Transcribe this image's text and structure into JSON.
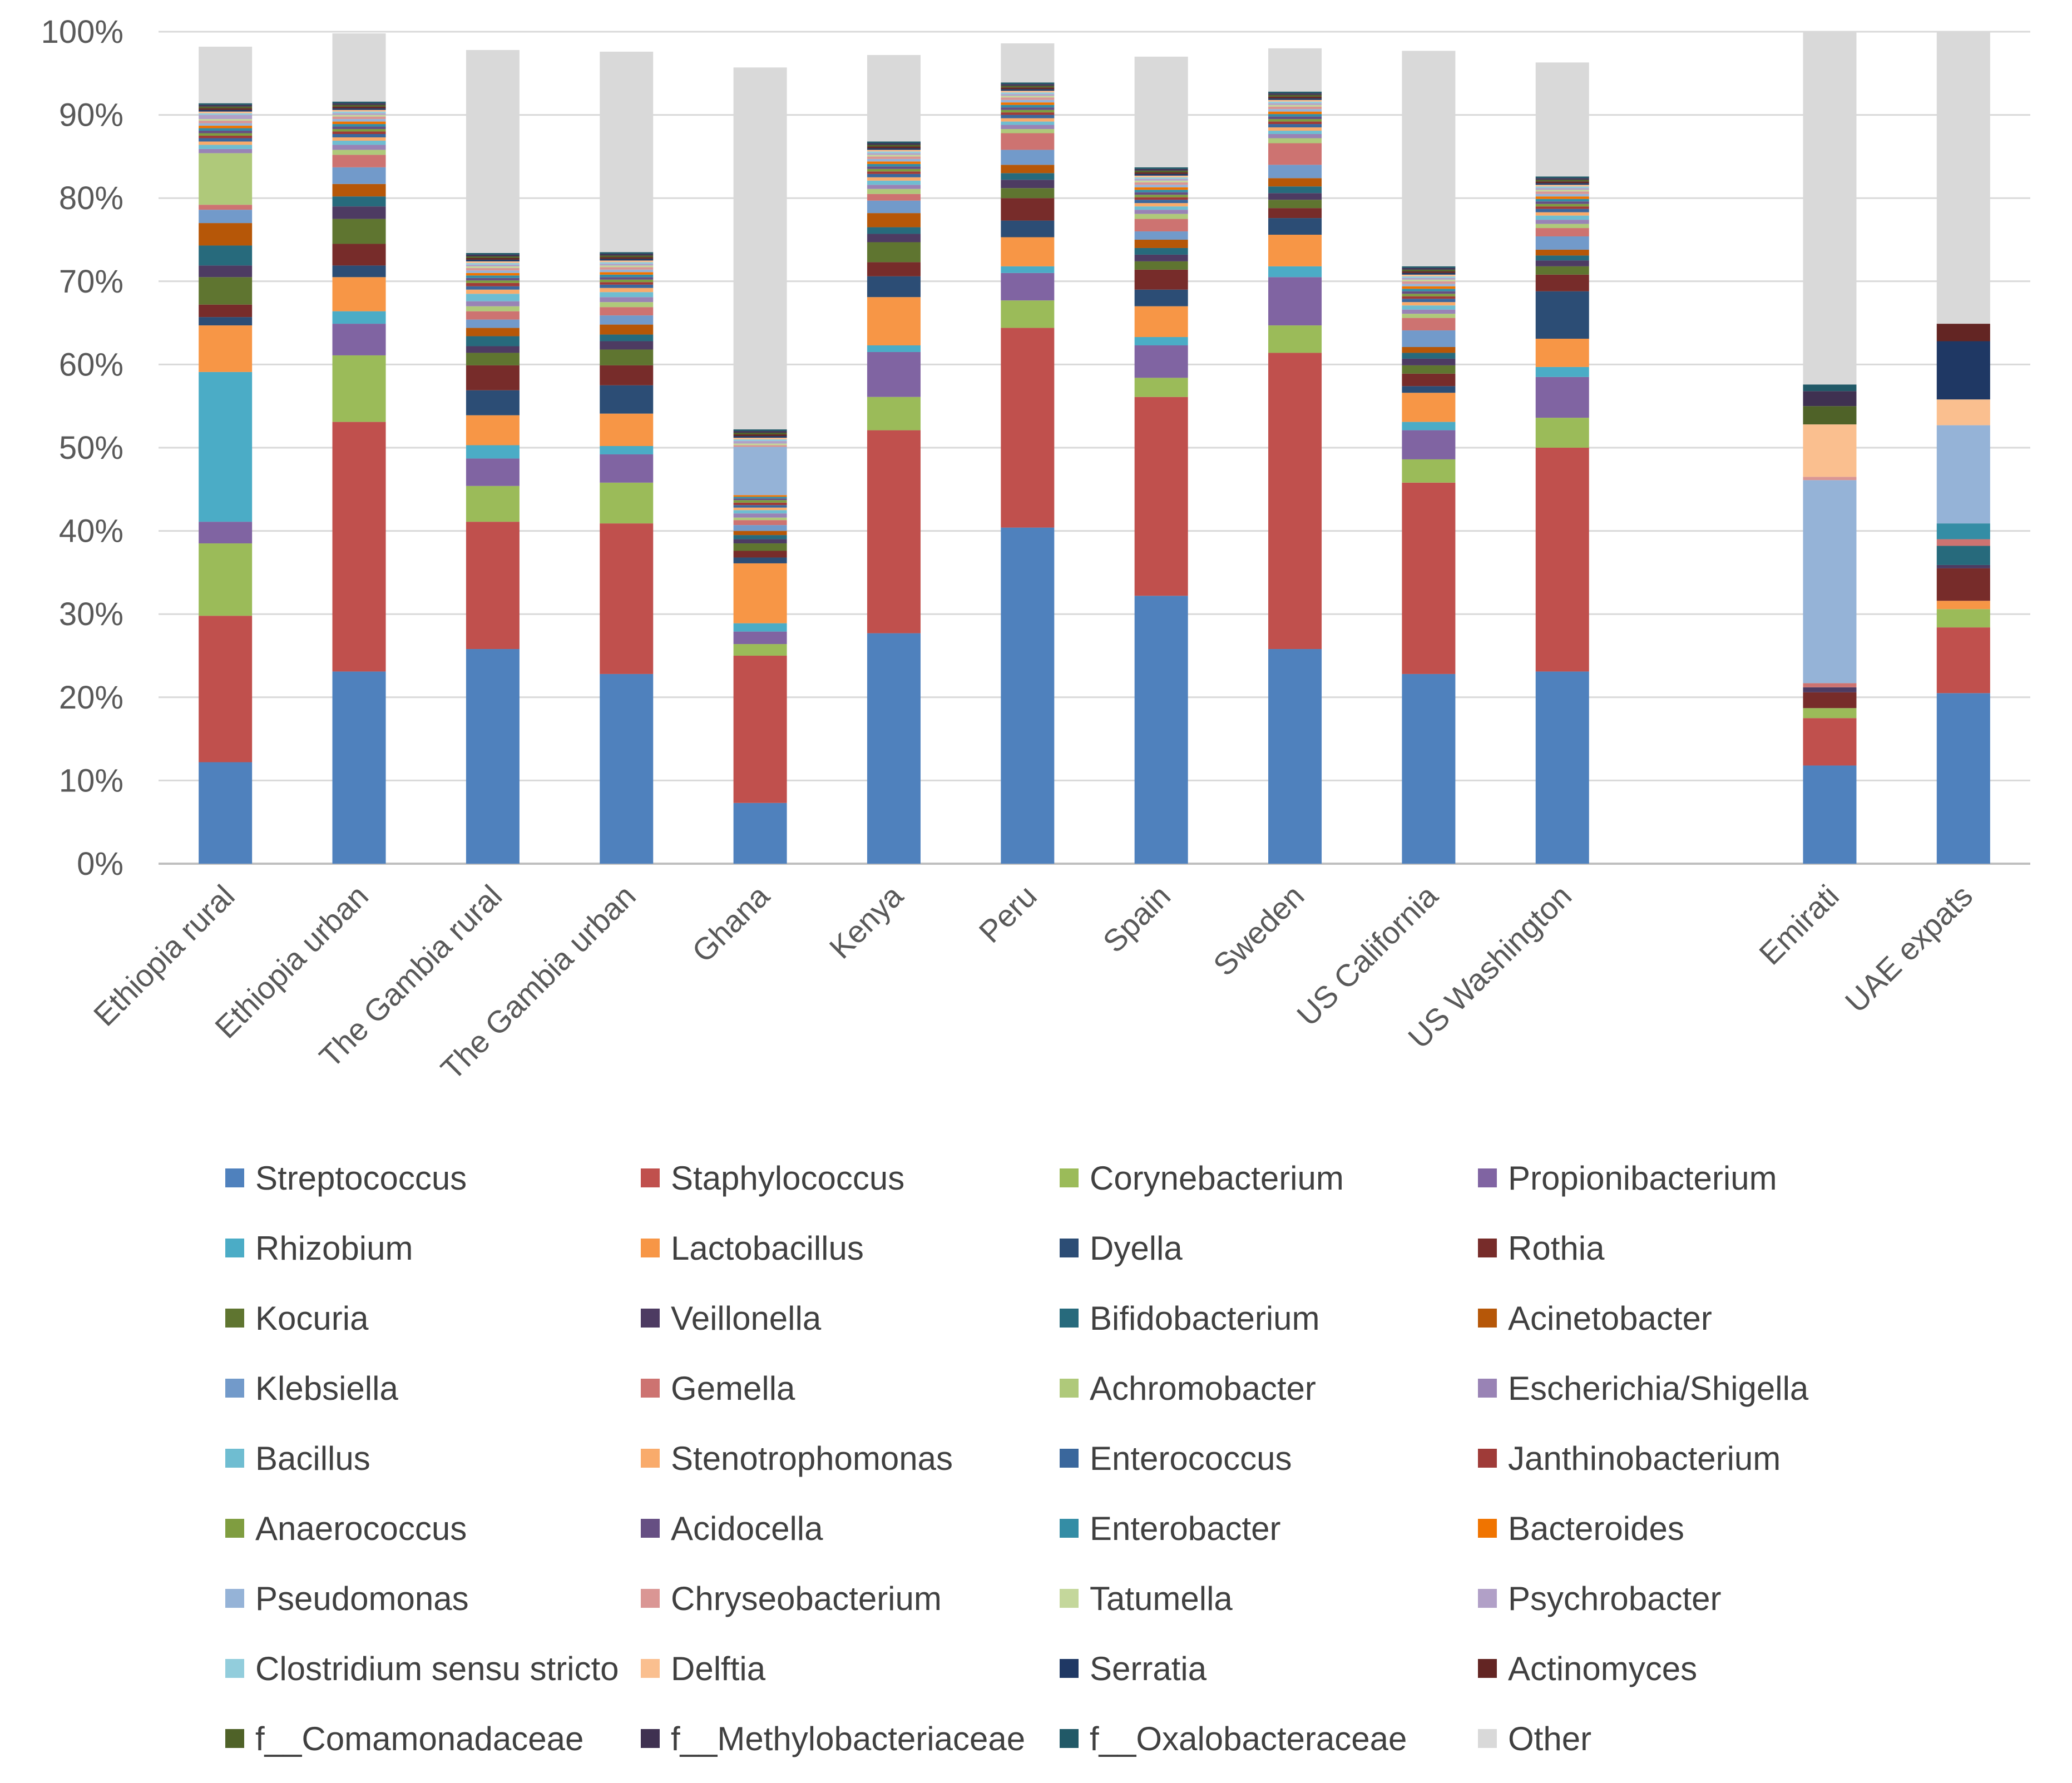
{
  "chart_data": {
    "type": "stacked-bar",
    "title": "",
    "xlabel": "",
    "ylabel": "",
    "ylim": [
      0,
      100
    ],
    "yticks": [
      "0%",
      "10%",
      "20%",
      "30%",
      "40%",
      "50%",
      "60%",
      "70%",
      "80%",
      "90%",
      "100%"
    ],
    "grid": true,
    "legend_position": "bottom",
    "categories": [
      "Ethiopia rural",
      "Ethiopia urban",
      "The Gambia rural",
      "The Gambia urban",
      "Ghana",
      "Kenya",
      "Peru",
      "Spain",
      "Sweden",
      "US California",
      "US Washington",
      "",
      "Emirati",
      "UAE expats"
    ],
    "series": [
      {
        "name": "Streptococcus",
        "color": "#4F81BD",
        "values": [
          12.2,
          23.1,
          25.8,
          22.8,
          7.3,
          27.7,
          40.4,
          32.2,
          25.8,
          22.8,
          23.1,
          0,
          11.8,
          20.5
        ]
      },
      {
        "name": "Staphylococcus",
        "color": "#C0504D",
        "values": [
          17.6,
          30.0,
          15.3,
          18.1,
          17.7,
          24.4,
          24.0,
          23.9,
          35.6,
          23.0,
          26.9,
          0,
          5.7,
          7.9
        ]
      },
      {
        "name": "Corynebacterium",
        "color": "#9BBB59",
        "values": [
          8.7,
          8.0,
          4.3,
          4.9,
          1.4,
          4.0,
          3.3,
          2.3,
          3.3,
          2.8,
          3.6,
          0,
          1.2,
          2.2
        ]
      },
      {
        "name": "Propionibacterium",
        "color": "#8064A2",
        "values": [
          2.6,
          3.8,
          3.3,
          3.4,
          1.5,
          5.4,
          3.3,
          3.9,
          5.8,
          3.5,
          4.9,
          0,
          0,
          0
        ]
      },
      {
        "name": "Rhizobium",
        "color": "#4BACC6",
        "values": [
          18.0,
          1.5,
          1.6,
          1.0,
          1.0,
          0.8,
          0.8,
          1.0,
          1.3,
          1.0,
          1.2,
          0,
          0,
          0
        ]
      },
      {
        "name": "Lactobacillus",
        "color": "#F79646",
        "values": [
          5.6,
          4.1,
          3.6,
          3.9,
          7.2,
          5.8,
          3.5,
          3.7,
          3.8,
          3.5,
          3.4,
          0,
          0,
          1.0
        ]
      },
      {
        "name": "Dyella",
        "color": "#2C4D75",
        "values": [
          1.0,
          1.4,
          3.0,
          3.4,
          0.7,
          2.5,
          2.0,
          2.0,
          2.0,
          0.8,
          5.7,
          0,
          0,
          0
        ]
      },
      {
        "name": "Rothia",
        "color": "#772C2A",
        "values": [
          1.5,
          2.6,
          3.0,
          2.4,
          0.8,
          1.7,
          2.7,
          2.4,
          1.2,
          1.5,
          2.0,
          0,
          1.9,
          3.9
        ]
      },
      {
        "name": "Kocuria",
        "color": "#5F7530",
        "values": [
          3.3,
          3.0,
          1.5,
          1.9,
          0.9,
          2.4,
          1.2,
          1.0,
          1.0,
          1.0,
          1.0,
          0,
          0,
          0
        ]
      },
      {
        "name": "Veillonella",
        "color": "#4D3B62",
        "values": [
          1.4,
          1.5,
          0.8,
          1.0,
          0.5,
          1.0,
          1.0,
          0.8,
          0.8,
          0.8,
          0.7,
          0,
          0.6,
          0.4
        ]
      },
      {
        "name": "Bifidobacterium",
        "color": "#276A7C",
        "values": [
          2.4,
          1.2,
          1.2,
          0.8,
          0.5,
          0.8,
          0.8,
          0.8,
          0.8,
          0.7,
          0.6,
          0,
          0,
          2.3
        ]
      },
      {
        "name": "Acinetobacter",
        "color": "#B65708",
        "values": [
          2.7,
          1.5,
          1.0,
          1.2,
          0.5,
          1.7,
          1.0,
          1.0,
          1.0,
          0.7,
          0.7,
          0,
          0,
          0
        ]
      },
      {
        "name": "Klebsiella",
        "color": "#729ACA",
        "values": [
          1.6,
          2.0,
          1.0,
          1.1,
          0.7,
          1.5,
          1.8,
          1.0,
          1.6,
          2.0,
          1.6,
          0,
          0,
          0
        ]
      },
      {
        "name": "Gemella",
        "color": "#CD7371",
        "values": [
          0.6,
          1.5,
          1.0,
          1.0,
          0.6,
          0.8,
          2.0,
          1.5,
          2.6,
          1.5,
          1.0,
          0,
          0.5,
          0.8
        ]
      },
      {
        "name": "Achromobacter",
        "color": "#AFC97A",
        "values": [
          6.2,
          0.6,
          0.6,
          0.6,
          0.3,
          0.6,
          0.5,
          0.6,
          0.6,
          0.5,
          0.5,
          0,
          0,
          0
        ]
      },
      {
        "name": "Escherichia/Shigella",
        "color": "#9983B5",
        "values": [
          0.5,
          0.6,
          0.6,
          0.6,
          0.5,
          0.5,
          0.5,
          0.5,
          0.5,
          0.5,
          0.5,
          0,
          0,
          0
        ]
      },
      {
        "name": "Bacillus",
        "color": "#6FBDD1",
        "values": [
          0.5,
          0.5,
          0.9,
          0.6,
          0.4,
          0.5,
          0.4,
          0.4,
          0.4,
          0.5,
          0.5,
          0,
          0,
          0
        ]
      },
      {
        "name": "Stenotrophomonas",
        "color": "#F9AB6B",
        "values": [
          0.4,
          0.4,
          0.5,
          0.5,
          0.3,
          0.4,
          0.4,
          0.4,
          0.4,
          0.4,
          0.4,
          0,
          0,
          0
        ]
      },
      {
        "name": "Enterococcus",
        "color": "#3A679C",
        "values": [
          0.4,
          0.4,
          0.4,
          0.4,
          0.3,
          0.4,
          0.4,
          0.4,
          0.4,
          0.4,
          0.4,
          0,
          0,
          0
        ]
      },
      {
        "name": "Janthinobacterium",
        "color": "#9F3B38",
        "values": [
          0.3,
          0.3,
          0.4,
          0.3,
          0.3,
          0.3,
          0.3,
          0.3,
          0.3,
          0.3,
          0.3,
          0,
          0,
          0
        ]
      },
      {
        "name": "Anaerococcus",
        "color": "#7F9D40",
        "values": [
          0.3,
          0.3,
          0.3,
          0.3,
          0.3,
          0.3,
          0.3,
          0.3,
          0.3,
          0.3,
          0.3,
          0,
          0,
          0
        ]
      },
      {
        "name": "Acidocella",
        "color": "#664F83",
        "values": [
          0.3,
          0.3,
          0.3,
          0.3,
          0.2,
          0.3,
          0.3,
          0.3,
          0.3,
          0.3,
          0.3,
          0,
          0,
          0
        ]
      },
      {
        "name": "Enterobacter",
        "color": "#348DA5",
        "values": [
          0.3,
          0.3,
          0.3,
          0.3,
          0.2,
          0.3,
          0.3,
          0.3,
          0.3,
          0.3,
          0.3,
          0,
          0,
          1.9
        ]
      },
      {
        "name": "Bacteroides",
        "color": "#F07400",
        "values": [
          0.3,
          0.3,
          0.3,
          0.3,
          0.2,
          0.3,
          0.3,
          0.3,
          0.3,
          0.3,
          0.3,
          0,
          0,
          0
        ]
      },
      {
        "name": "Pseudomonas",
        "color": "#95B3D7",
        "values": [
          0.3,
          0.3,
          0.3,
          0.3,
          5.8,
          0.3,
          0.3,
          0.3,
          0.3,
          0.3,
          0.3,
          0,
          24.4,
          11.8
        ]
      },
      {
        "name": "Chryseobacterium",
        "color": "#DA9694",
        "values": [
          0.3,
          0.3,
          0.3,
          0.3,
          0.2,
          0.3,
          0.3,
          0.3,
          0.3,
          0.3,
          0.3,
          0,
          0.4,
          0
        ]
      },
      {
        "name": "Tatumella",
        "color": "#C4D79B",
        "values": [
          0.2,
          0.2,
          0.2,
          0.2,
          0.2,
          0.2,
          0.2,
          0.2,
          0.2,
          0.2,
          0.2,
          0,
          0,
          0
        ]
      },
      {
        "name": "Psychrobacter",
        "color": "#B1A0C7",
        "values": [
          0.5,
          0.2,
          0.2,
          0.2,
          0.3,
          0.2,
          0.2,
          0.2,
          0.2,
          0.2,
          0.2,
          0,
          0,
          0
        ]
      },
      {
        "name": "Clostridium sensu stricto",
        "color": "#92CDDC",
        "values": [
          0.2,
          0.2,
          0.2,
          0.2,
          0.2,
          0.2,
          0.2,
          0.2,
          0.2,
          0.2,
          0.2,
          0,
          0,
          0
        ]
      },
      {
        "name": "Delftia",
        "color": "#FABF8F",
        "values": [
          0.2,
          0.2,
          0.2,
          0.2,
          0.2,
          0.2,
          0.2,
          0.2,
          0.2,
          0.2,
          0.2,
          0,
          6.3,
          3.1
        ]
      },
      {
        "name": "Serratia",
        "color": "#1F3864",
        "values": [
          0.2,
          0.2,
          0.2,
          0.2,
          0.2,
          0.2,
          0.2,
          0.2,
          0.2,
          0.2,
          0.2,
          0,
          0,
          7.0
        ]
      },
      {
        "name": "Actinomyces",
        "color": "#632523",
        "values": [
          0.2,
          0.2,
          0.2,
          0.2,
          0.2,
          0.2,
          0.2,
          0.2,
          0.2,
          0.2,
          0.2,
          0,
          0,
          2.1
        ]
      },
      {
        "name": "f__Comamonadaceae",
        "color": "#4F6228",
        "values": [
          0.2,
          0.2,
          0.2,
          0.2,
          0.2,
          0.2,
          0.2,
          0.2,
          0.2,
          0.2,
          0.2,
          0,
          2.2,
          0
        ]
      },
      {
        "name": "f__Methylobacteriaceae",
        "color": "#3F3151",
        "values": [
          0.2,
          0.2,
          0.2,
          0.2,
          0.2,
          0.2,
          0.2,
          0.2,
          0.2,
          0.2,
          0.2,
          0,
          1.8,
          0
        ]
      },
      {
        "name": "f__Oxalobacteraceae",
        "color": "#215967",
        "values": [
          0.2,
          0.2,
          0.2,
          0.2,
          0.2,
          0.2,
          0.2,
          0.2,
          0.2,
          0.2,
          0.2,
          0,
          0.8,
          0
        ]
      },
      {
        "name": "Other",
        "color": "#D9D9D9",
        "values": [
          6.8,
          8.2,
          24.4,
          24.1,
          43.5,
          10.4,
          4.7,
          13.3,
          5.2,
          25.9,
          13.7,
          0,
          42.4,
          35.0
        ]
      }
    ]
  }
}
